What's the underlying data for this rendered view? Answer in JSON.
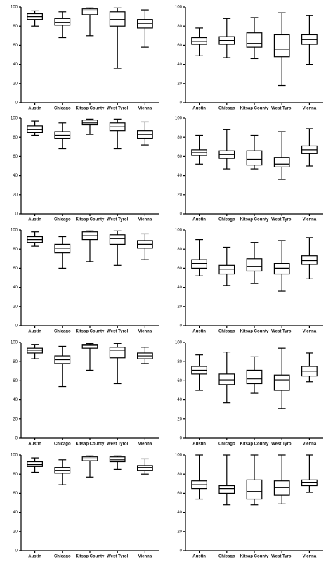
{
  "chart_data": [
    {
      "type": "box",
      "categories": [
        "Austin",
        "Chicago",
        "Kitsap County",
        "West Tyrol",
        "Vienna"
      ],
      "min": [
        80,
        68,
        70,
        36,
        58
      ],
      "q1": [
        87,
        81,
        92,
        80,
        78
      ],
      "median": [
        90,
        84,
        96,
        87,
        83
      ],
      "q3": [
        93,
        88,
        98,
        95,
        87
      ],
      "max": [
        96,
        95,
        99,
        99,
        97
      ],
      "ylim": [
        0,
        100
      ],
      "yticks": [
        0,
        20,
        40,
        60,
        80,
        100
      ]
    },
    {
      "type": "box",
      "categories": [
        "Austin",
        "Chicago",
        "Kitsap County",
        "West Tyrol",
        "Vienna"
      ],
      "min": [
        49,
        47,
        46,
        18,
        40
      ],
      "q1": [
        61,
        61,
        58,
        48,
        61
      ],
      "median": [
        64,
        65,
        62,
        56,
        66
      ],
      "q3": [
        68,
        69,
        73,
        71,
        71
      ],
      "max": [
        78,
        88,
        89,
        94,
        91
      ],
      "ylim": [
        0,
        100
      ],
      "yticks": [
        0,
        20,
        40,
        60,
        80,
        100
      ]
    },
    {
      "type": "box",
      "categories": [
        "Austin",
        "Chicago",
        "Kitsap County",
        "West Tyrol",
        "Vienna"
      ],
      "min": [
        82,
        68,
        83,
        68,
        72
      ],
      "q1": [
        85,
        79,
        93,
        87,
        79
      ],
      "median": [
        88,
        82,
        95,
        91,
        83
      ],
      "q3": [
        92,
        86,
        98,
        95,
        87
      ],
      "max": [
        97,
        95,
        99,
        99,
        96
      ],
      "ylim": [
        0,
        100
      ],
      "yticks": [
        0,
        20,
        40,
        60,
        80,
        100
      ]
    },
    {
      "type": "box",
      "categories": [
        "Austin",
        "Chicago",
        "Kitsap County",
        "West Tyrol",
        "Vienna"
      ],
      "min": [
        52,
        47,
        47,
        36,
        50
      ],
      "q1": [
        61,
        58,
        51,
        49,
        63
      ],
      "median": [
        64,
        62,
        57,
        52,
        67
      ],
      "q3": [
        67,
        66,
        66,
        59,
        71
      ],
      "max": [
        82,
        88,
        82,
        86,
        89
      ],
      "ylim": [
        0,
        100
      ],
      "yticks": [
        0,
        20,
        40,
        60,
        80,
        100
      ]
    },
    {
      "type": "box",
      "categories": [
        "Austin",
        "Chicago",
        "Kitsap County",
        "West Tyrol",
        "Vienna"
      ],
      "min": [
        83,
        60,
        67,
        63,
        69
      ],
      "q1": [
        87,
        76,
        90,
        85,
        81
      ],
      "median": [
        90,
        81,
        94,
        91,
        85
      ],
      "q3": [
        93,
        85,
        98,
        95,
        89
      ],
      "max": [
        98,
        93,
        99,
        99,
        96
      ],
      "ylim": [
        0,
        100
      ],
      "yticks": [
        0,
        20,
        40,
        60,
        80,
        100
      ]
    },
    {
      "type": "box",
      "categories": [
        "Austin",
        "Chicago",
        "Kitsap County",
        "West Tyrol",
        "Vienna"
      ],
      "min": [
        52,
        42,
        44,
        36,
        49
      ],
      "q1": [
        60,
        54,
        57,
        54,
        64
      ],
      "median": [
        65,
        59,
        62,
        60,
        68
      ],
      "q3": [
        69,
        63,
        70,
        65,
        73
      ],
      "max": [
        90,
        82,
        87,
        89,
        92
      ],
      "ylim": [
        0,
        100
      ],
      "yticks": [
        0,
        20,
        40,
        60,
        80,
        100
      ]
    },
    {
      "type": "box",
      "categories": [
        "Austin",
        "Chicago",
        "Kitsap County",
        "West Tyrol",
        "Vienna"
      ],
      "min": [
        83,
        54,
        71,
        57,
        78
      ],
      "q1": [
        89,
        78,
        94,
        84,
        83
      ],
      "median": [
        92,
        82,
        97,
        92,
        86
      ],
      "q3": [
        94,
        86,
        98,
        95,
        89
      ],
      "max": [
        98,
        96,
        99,
        99,
        95
      ],
      "ylim": [
        0,
        100
      ],
      "yticks": [
        0,
        20,
        40,
        60,
        80,
        100
      ]
    },
    {
      "type": "box",
      "categories": [
        "Austin",
        "Chicago",
        "Kitsap County",
        "West Tyrol",
        "Vienna"
      ],
      "min": [
        50,
        37,
        47,
        31,
        59
      ],
      "q1": [
        67,
        56,
        57,
        50,
        65
      ],
      "median": [
        71,
        61,
        62,
        61,
        70
      ],
      "q3": [
        75,
        67,
        71,
        66,
        75
      ],
      "max": [
        87,
        90,
        85,
        94,
        89
      ],
      "ylim": [
        0,
        100
      ],
      "yticks": [
        0,
        20,
        40,
        60,
        80,
        100
      ]
    },
    {
      "type": "box",
      "categories": [
        "Austin",
        "Chicago",
        "Kitsap County",
        "West Tyrol",
        "Vienna"
      ],
      "min": [
        82,
        69,
        77,
        85,
        80
      ],
      "q1": [
        88,
        81,
        94,
        93,
        84
      ],
      "median": [
        90,
        84,
        96,
        95,
        87
      ],
      "q3": [
        93,
        87,
        98,
        98,
        89
      ],
      "max": [
        97,
        95,
        99,
        99,
        96
      ],
      "ylim": [
        0,
        100
      ],
      "yticks": [
        0,
        20,
        40,
        60,
        80,
        100
      ]
    },
    {
      "type": "box",
      "categories": [
        "Austin",
        "Chicago",
        "Kitsap County",
        "West Tyrol",
        "Vienna"
      ],
      "min": [
        54,
        48,
        48,
        49,
        61
      ],
      "q1": [
        65,
        60,
        54,
        58,
        68
      ],
      "median": [
        69,
        65,
        62,
        66,
        71
      ],
      "q3": [
        73,
        68,
        74,
        73,
        74
      ],
      "max": [
        100,
        100,
        100,
        100,
        100
      ],
      "ylim": [
        0,
        100
      ],
      "yticks": [
        0,
        20,
        40,
        60,
        80,
        100
      ]
    }
  ]
}
